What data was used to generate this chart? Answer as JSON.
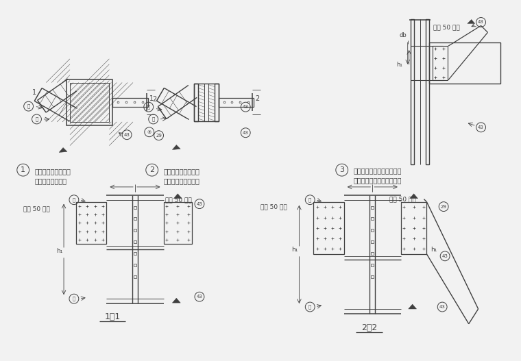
{
  "bg_color": "#f2f2f2",
  "line_color": "#404040",
  "text_color": "#404040",
  "label1": "非正交框架梁与箱形\n截面柱的刚性连接",
  "label2": "非正交框架梁与工字\n形截面柱的刚性连接",
  "label3": "顶层框架梁与箱形截面柱或\n与工字形截面柱的刚性连接",
  "label_11": "1－1",
  "label_22": "2－2",
  "ref50": "按表 50 通用"
}
